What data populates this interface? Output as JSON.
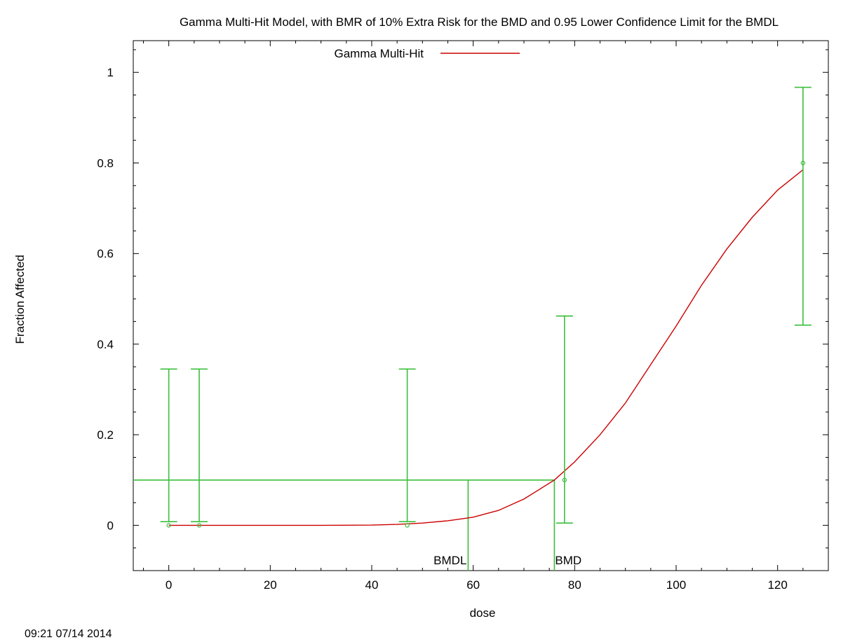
{
  "chart_data": {
    "type": "scatter",
    "title": "Gamma Multi-Hit Model, with BMR of 10% Extra Risk for the BMD and 0.95 Lower Confidence Limit for the BMDL",
    "xlabel": "dose",
    "ylabel": "Fraction Affected",
    "xlim": [
      -7,
      130
    ],
    "ylim": [
      -0.1,
      1.07
    ],
    "x_ticks": [
      0,
      20,
      40,
      60,
      80,
      100,
      120
    ],
    "y_ticks": [
      0,
      0.2,
      0.4,
      0.6,
      0.8,
      1
    ],
    "grid": false,
    "legend_position": "top-center",
    "observations": {
      "name": "",
      "color": "#3cbf3c",
      "points": [
        {
          "x": 0,
          "y": 0,
          "lower": 0.008,
          "upper": 0.345
        },
        {
          "x": 6,
          "y": 0,
          "lower": 0.008,
          "upper": 0.345
        },
        {
          "x": 47,
          "y": 0,
          "lower": 0.008,
          "upper": 0.345
        },
        {
          "x": 78,
          "y": 0.1,
          "lower": 0.005,
          "upper": 0.462
        },
        {
          "x": 125,
          "y": 0.8,
          "lower": 0.442,
          "upper": 0.967
        }
      ]
    },
    "model": {
      "name": "Gamma Multi-Hit",
      "color": "#cc0000",
      "x": [
        0,
        10,
        20,
        30,
        40,
        45,
        50,
        55,
        60,
        65,
        70,
        76,
        80,
        85,
        90,
        95,
        100,
        105,
        110,
        115,
        120,
        125
      ],
      "y": [
        0,
        0,
        0,
        0,
        0.0005,
        0.002,
        0.005,
        0.01,
        0.018,
        0.033,
        0.058,
        0.1,
        0.14,
        0.2,
        0.27,
        0.355,
        0.44,
        0.53,
        0.61,
        0.68,
        0.74,
        0.785
      ]
    },
    "bmr": 0.1,
    "bmd": 76,
    "bmdl": 59,
    "bmd_label": "BMD",
    "bmdl_label": "BMDL",
    "line_color": "#3cbf3c"
  },
  "timestamp": "09:21 07/14 2014"
}
